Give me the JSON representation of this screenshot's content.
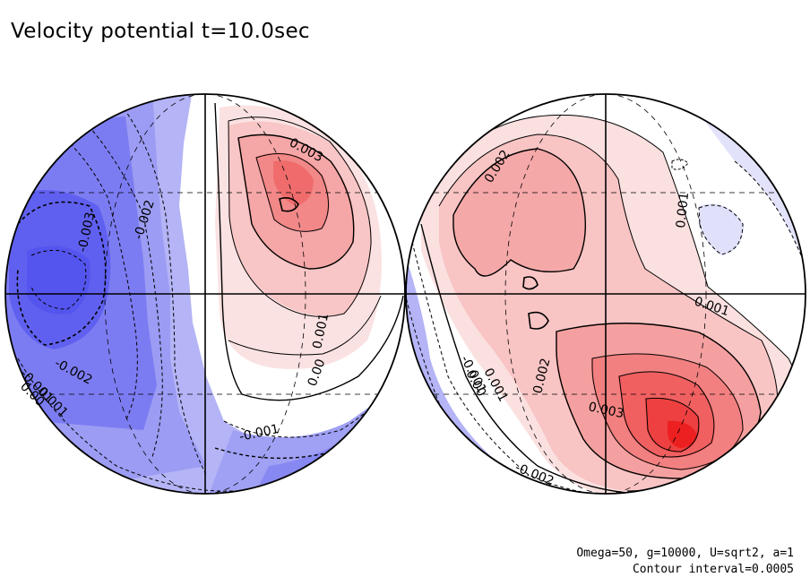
{
  "title": "Velocity potential t=10.0sec",
  "footer": {
    "params": "Omega=50, g=10000, U=sqrt2, a=1",
    "contour": "Contour interval=0.0005"
  },
  "colors": {
    "negative": "#5a5af0",
    "positive": "#f03030",
    "lines": "#000000"
  },
  "contour_labels": {
    "left": [
      "-0.003",
      "-0.002",
      "0.003",
      "0.001",
      "0.00",
      "-0.002",
      "-0.001",
      "0.001",
      "0.00",
      "-0.001"
    ],
    "right": [
      "0.002",
      "0.001",
      "0.001",
      "0.002",
      "0.003",
      "-0.001",
      "0.00",
      "0.001",
      "-0.002"
    ]
  }
}
